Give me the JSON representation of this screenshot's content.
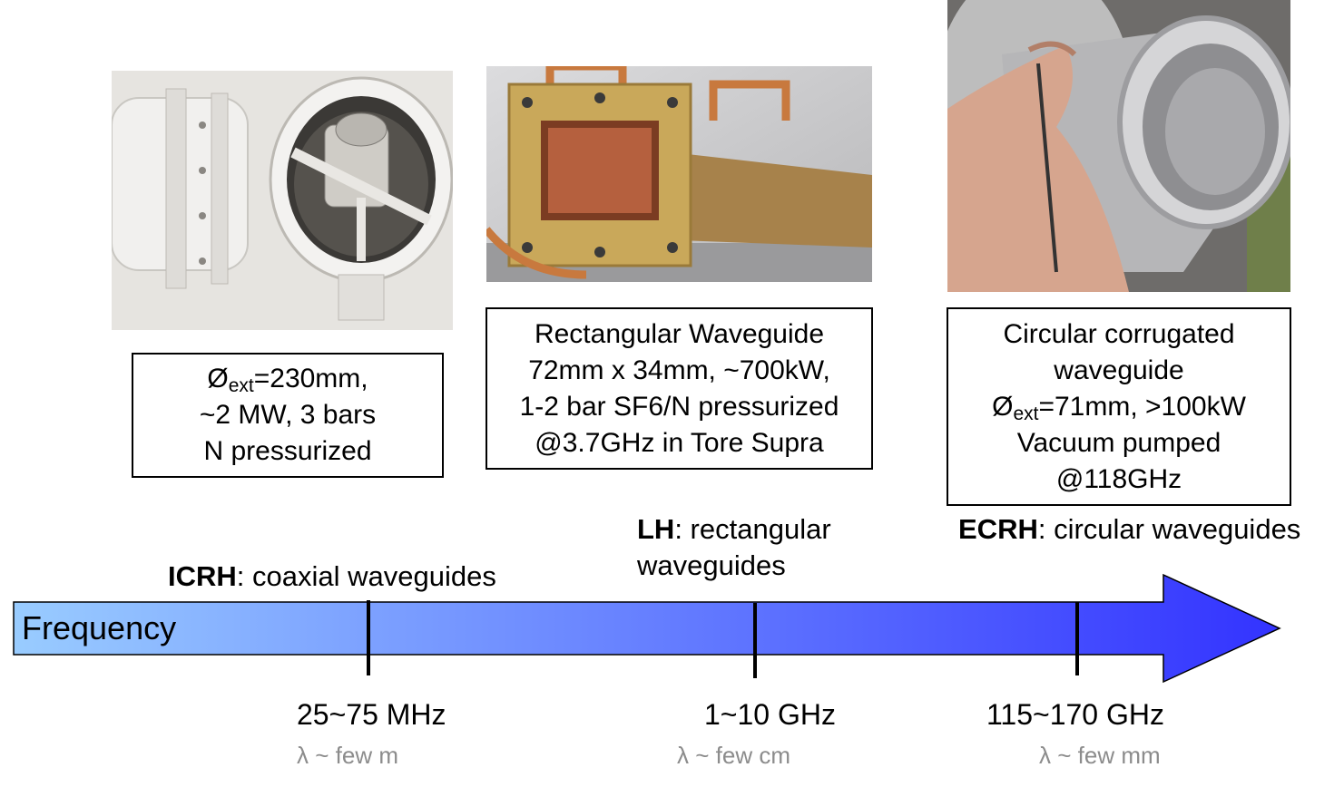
{
  "photos": {
    "icrh": "ICRH coaxial waveguide photo",
    "lh": "LH rectangular waveguide photo",
    "ecrh": "ECRH circular corrugated waveguide photo"
  },
  "boxes": {
    "icrh": {
      "line1_prefix": "Ø",
      "line1_sub": "ext",
      "line1_suffix": "=230mm,",
      "line2": "~2 MW, 3 bars",
      "line3": "N pressurized"
    },
    "lh": {
      "line1": "Rectangular Waveguide",
      "line2": "72mm x 34mm, ~700kW,",
      "line3": "1-2 bar SF6/N pressurized",
      "line4": "@3.7GHz in Tore Supra"
    },
    "ecrh": {
      "line1": "Circular corrugated",
      "line2": "waveguide",
      "line3_prefix": "Ø",
      "line3_sub": "ext",
      "line3_suffix": "=71mm, >100kW",
      "line4": "Vacuum pumped",
      "line5": "@118GHz"
    }
  },
  "labels": {
    "icrh": {
      "bold": "ICRH",
      "rest": ": coaxial waveguides"
    },
    "lh": {
      "bold": "LH",
      "rest": ": rectangular",
      "line2": "waveguides"
    },
    "ecrh": {
      "bold": "ECRH",
      "rest": ": circular waveguides"
    }
  },
  "axis": {
    "title": "Frequency",
    "colors": {
      "start": "#99ccff",
      "end": "#3333ff",
      "outline": "#000000"
    }
  },
  "ticks": [
    {
      "freq": "25~75 MHz",
      "lambda": "λ ~ few m"
    },
    {
      "freq": "1~10 GHz",
      "lambda": "λ ~ few cm"
    },
    {
      "freq": "115~170 GHz",
      "lambda": "λ ~ few mm"
    }
  ]
}
